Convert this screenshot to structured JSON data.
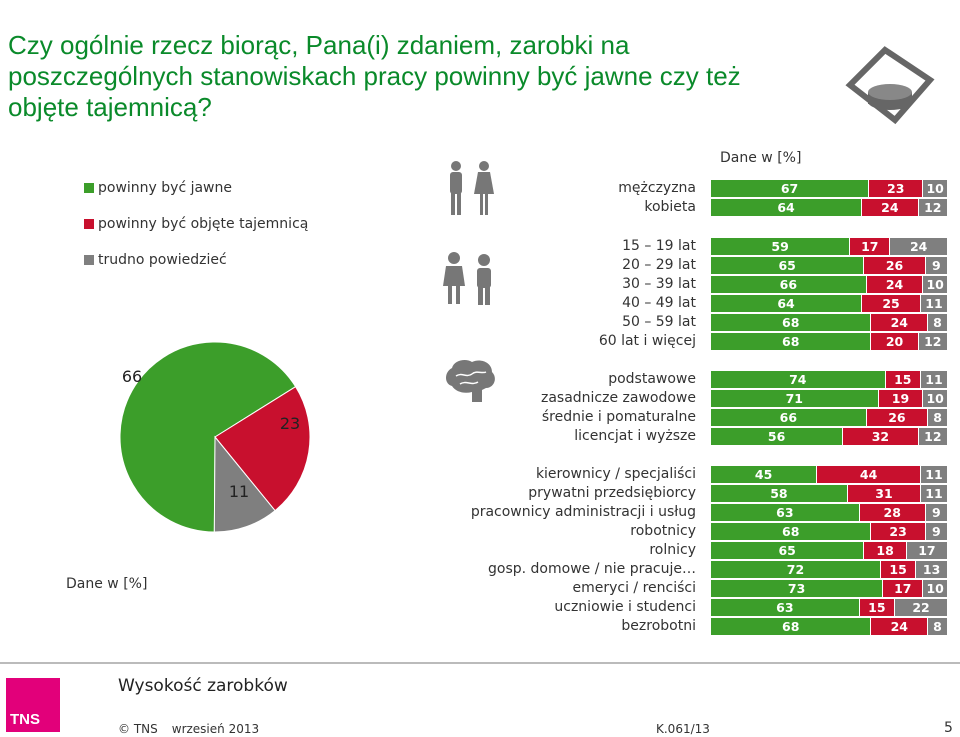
{
  "title": "Czy ogólnie rzecz biorąc, Pana(i) zdaniem, zarobki na poszczególnych stanowiskach pracy powinny być jawne czy też objęte tajemnicą?",
  "colors": {
    "jawne": "#3c9e2a",
    "tajemnica": "#c8102e",
    "trudno": "#7f7f7f"
  },
  "legend": [
    {
      "label": "powinny być jawne",
      "color": "#3c9e2a"
    },
    {
      "label": "powinny być objęte tajemnicą",
      "color": "#c8102e"
    },
    {
      "label": "trudno powiedzieć",
      "color": "#7f7f7f"
    }
  ],
  "pie_unit": "Dane w [%]",
  "bar_unit": "Dane w [%]",
  "icons": [
    "logo-coins-icon",
    "men-women-icon",
    "age-group-icon",
    "brain-icon"
  ],
  "chart_data": [
    {
      "type": "pie",
      "slices": [
        {
          "label": "powinny być jawne",
          "value": 66
        },
        {
          "label": "powinny być objęte tajemnicą",
          "value": 23
        },
        {
          "label": "trudno powiedzieć",
          "value": 11
        }
      ]
    },
    {
      "type": "bar",
      "stacked": true,
      "series_keys": [
        "powinny być jawne",
        "powinny być objęte tajemnicą",
        "trudno powiedzieć"
      ],
      "rows": [
        {
          "label": "mężczyzna",
          "values": [
            67,
            23,
            10
          ]
        },
        {
          "label": "kobieta",
          "values": [
            64,
            24,
            12
          ]
        },
        {
          "label": "15 – 19 lat",
          "values": [
            59,
            17,
            24
          ]
        },
        {
          "label": "20 – 29 lat",
          "values": [
            65,
            26,
            9
          ]
        },
        {
          "label": "30 – 39 lat",
          "values": [
            66,
            24,
            10
          ]
        },
        {
          "label": "40 – 49 lat",
          "values": [
            64,
            25,
            11
          ]
        },
        {
          "label": "50 – 59 lat",
          "values": [
            68,
            24,
            8
          ]
        },
        {
          "label": "60 lat i więcej",
          "values": [
            68,
            20,
            12
          ]
        },
        {
          "label": "podstawowe",
          "values": [
            74,
            15,
            11
          ]
        },
        {
          "label": "zasadnicze zawodowe",
          "values": [
            71,
            19,
            10
          ]
        },
        {
          "label": "średnie i pomaturalne",
          "values": [
            66,
            26,
            8
          ]
        },
        {
          "label": "licencjat i wyższe",
          "values": [
            56,
            32,
            12
          ]
        },
        {
          "label": "kierownicy / specjaliści",
          "values": [
            45,
            44,
            11
          ]
        },
        {
          "label": "prywatni przedsiębiorcy",
          "values": [
            58,
            31,
            11
          ]
        },
        {
          "label": "pracownicy administracji i usług",
          "values": [
            63,
            28,
            9
          ]
        },
        {
          "label": "robotnicy",
          "values": [
            68,
            23,
            9
          ]
        },
        {
          "label": "rolnicy",
          "values": [
            65,
            18,
            17
          ]
        },
        {
          "label": "gosp. domowe / nie pracuje…",
          "values": [
            72,
            15,
            13
          ]
        },
        {
          "label": "emeryci / renciści",
          "values": [
            73,
            17,
            10
          ]
        },
        {
          "label": "uczniowie i studenci",
          "values": [
            63,
            15,
            22
          ]
        },
        {
          "label": "bezrobotni",
          "values": [
            68,
            24,
            8
          ]
        }
      ]
    }
  ],
  "footer": {
    "title": "Wysokość zarobków",
    "logo_text": "TNS",
    "copyright": "© TNS",
    "date": "wrzesień 2013",
    "code": "K.061/13",
    "page": "5"
  }
}
